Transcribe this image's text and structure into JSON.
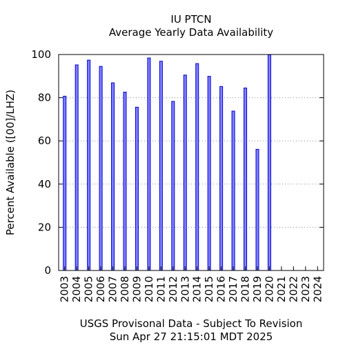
{
  "chart_data": {
    "type": "bar",
    "title": "IU PTCN",
    "subtitle": "Average Yearly Data Availability",
    "ylabel": "Percent Available ([00]/LHZ)",
    "xlabel": "",
    "ylim": [
      0,
      100
    ],
    "yticks": [
      0,
      20,
      40,
      60,
      80,
      100
    ],
    "grid": "horizontal dotted",
    "bar_color": "#8080ff",
    "bar_edge_color": "#0000cc",
    "categories": [
      "2003",
      "2004",
      "2005",
      "2006",
      "2007",
      "2008",
      "2009",
      "2010",
      "2011",
      "2012",
      "2013",
      "2014",
      "2015",
      "2016",
      "2017",
      "2018",
      "2019",
      "2020",
      "2021",
      "2022",
      "2023",
      "2024"
    ],
    "values": [
      80.7,
      95.2,
      97.4,
      94.5,
      86.9,
      82.6,
      75.6,
      98.4,
      96.9,
      78.3,
      90.5,
      95.8,
      89.9,
      85.2,
      73.8,
      84.5,
      56.1,
      99.9,
      null,
      null,
      null,
      null
    ],
    "footer_line1": "USGS Provisonal Data - Subject To Revision",
    "footer_line2": "Sun Apr 27 21:15:01 MDT 2025"
  }
}
